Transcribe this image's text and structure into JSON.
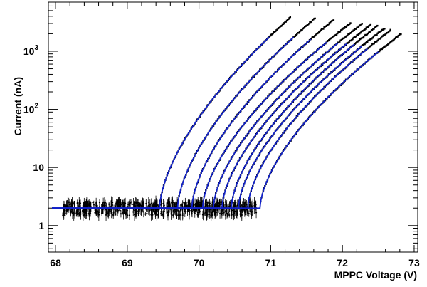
{
  "chart_data": {
    "type": "scatter",
    "title": "",
    "xlabel": "MPPC Voltage (V)",
    "ylabel": "Current (nA)",
    "xlim": [
      67.9,
      73.05
    ],
    "ylim": [
      0.35,
      7000
    ],
    "yscale": "log",
    "grid": false,
    "legend": "none",
    "x_ticks": [
      {
        "value": 68,
        "label": "68"
      },
      {
        "value": 69,
        "label": "69"
      },
      {
        "value": 70,
        "label": "70"
      },
      {
        "value": 71,
        "label": "71"
      },
      {
        "value": 72,
        "label": "72"
      },
      {
        "value": 73,
        "label": "73"
      }
    ],
    "y_ticks": [
      {
        "value": 1,
        "base": "1",
        "exp": ""
      },
      {
        "value": 10,
        "base": "10",
        "exp": ""
      },
      {
        "value": 100,
        "base": "10",
        "exp": "2"
      },
      {
        "value": 1000,
        "base": "10",
        "exp": "3"
      }
    ],
    "baseline_current": 2,
    "noise_region": {
      "x": [
        68.1,
        70.8
      ],
      "y_range": [
        1.4,
        2.8
      ]
    },
    "series": [
      {
        "v_break": 69.45,
        "v_end": 71.28,
        "i_end": 3900
      },
      {
        "v_break": 69.7,
        "v_end": 71.63,
        "i_end": 3800
      },
      {
        "v_break": 69.9,
        "v_end": 71.88,
        "i_end": 3500
      },
      {
        "v_break": 70.05,
        "v_end": 72.12,
        "i_end": 3100
      },
      {
        "v_break": 70.2,
        "v_end": 72.28,
        "i_end": 3000
      },
      {
        "v_break": 70.32,
        "v_end": 72.4,
        "i_end": 2900
      },
      {
        "v_break": 70.45,
        "v_end": 72.5,
        "i_end": 2800
      },
      {
        "v_break": 70.55,
        "v_end": 72.6,
        "i_end": 2550
      },
      {
        "v_break": 70.68,
        "v_end": 72.68,
        "i_end": 2350
      },
      {
        "v_break": 70.85,
        "v_end": 72.82,
        "i_end": 2000
      }
    ],
    "colors": {
      "data": "#000000",
      "fit": "#1020c8",
      "axis": "#000000"
    }
  }
}
